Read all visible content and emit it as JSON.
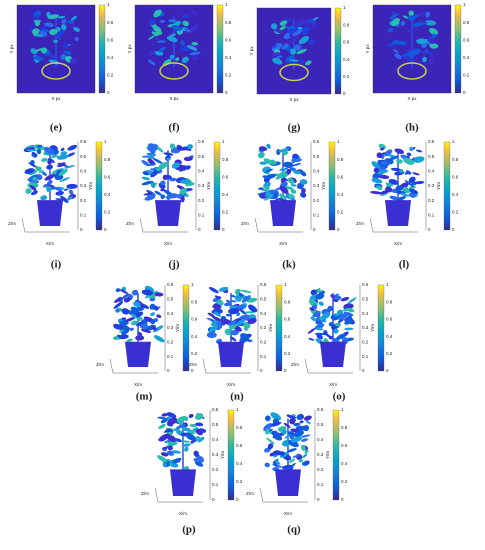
{
  "labels_2d": {
    "x": "X px",
    "y": "Y px"
  },
  "labels_3d": {
    "x": "X/m",
    "y": "Y/m",
    "z": "Z/m"
  },
  "colorbar_ticks": [
    "0",
    "0.2",
    "0.4",
    "0.6",
    "0.8",
    "1"
  ],
  "height_ticks": [
    "0",
    "0.1",
    "0.2",
    "0.3",
    "0.4",
    "0.5",
    "0.6"
  ],
  "panels": [
    {
      "caption": "(e)",
      "kind": "heatmap"
    },
    {
      "caption": "(f)",
      "kind": "heatmap"
    },
    {
      "caption": "(g)",
      "kind": "heatmap"
    },
    {
      "caption": "(h)",
      "kind": "heatmap"
    },
    {
      "caption": "(i)",
      "kind": "cloud"
    },
    {
      "caption": "(j)",
      "kind": "cloud"
    },
    {
      "caption": "(k)",
      "kind": "cloud"
    },
    {
      "caption": "(l)",
      "kind": "cloud"
    },
    {
      "caption": "(m)",
      "kind": "cloud"
    },
    {
      "caption": "(n)",
      "kind": "cloud"
    },
    {
      "caption": "(o)",
      "kind": "cloud"
    },
    {
      "caption": "(p)",
      "kind": "cloud"
    },
    {
      "caption": "(q)",
      "kind": "cloud"
    }
  ]
}
